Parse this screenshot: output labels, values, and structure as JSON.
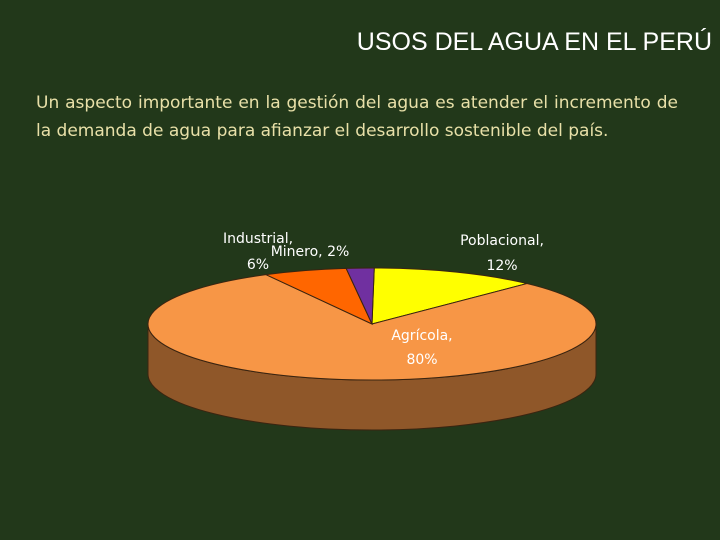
{
  "slide": {
    "title": "USOS DEL AGUA EN EL PERÚ",
    "intro": "Un aspecto importante en la gestión del agua es atender el incremento de la demanda de agua para afianzar el desarrollo sostenible del país."
  },
  "chart_data": {
    "type": "pie",
    "style": "3d",
    "categories": [
      "Poblacional",
      "Agrícola",
      "Industrial",
      "Minero"
    ],
    "values": [
      12,
      80,
      6,
      2
    ],
    "unit": "%",
    "labels": [
      {
        "line1": "Poblacional,",
        "line2": "12%"
      },
      {
        "line1": "Agrícola,",
        "line2": "80%"
      },
      {
        "line1": "Industrial,",
        "line2": "6%"
      },
      {
        "line1": "Minero, 2%",
        "line2": ""
      }
    ],
    "colors": [
      "#ffff00",
      "#f79646",
      "#ff6600",
      "#7030a0"
    ],
    "legend": "none"
  }
}
